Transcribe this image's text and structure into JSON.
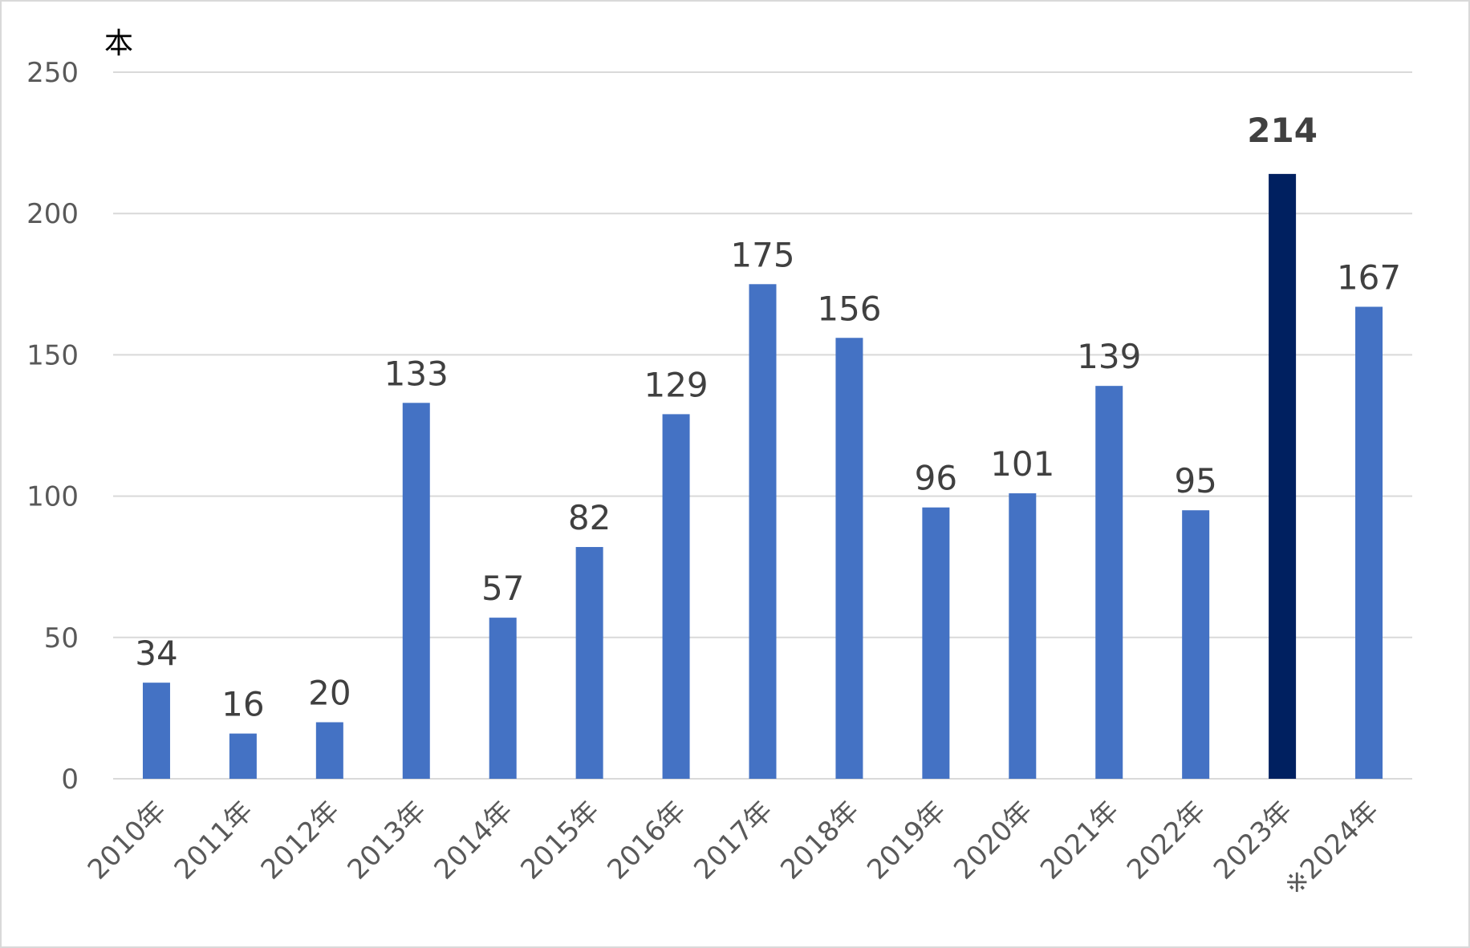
{
  "chart_data": {
    "type": "bar",
    "unit_label": "本",
    "categories": [
      "2010年",
      "2011年",
      "2012年",
      "2013年",
      "2014年",
      "2015年",
      "2016年",
      "2017年",
      "2018年",
      "2019年",
      "2020年",
      "2021年",
      "2022年",
      "2023年",
      "※2024年"
    ],
    "values": [
      34,
      16,
      20,
      133,
      57,
      82,
      129,
      175,
      156,
      96,
      101,
      139,
      95,
      214,
      167
    ],
    "highlight_index": 13,
    "ylim": [
      0,
      250
    ],
    "yticks": [
      0,
      50,
      100,
      150,
      200,
      250
    ],
    "grid": true,
    "colors": {
      "bar": "#4472C4",
      "highlight": "#002060",
      "grid": "#D9D9D9",
      "tick_label": "#595959",
      "data_label": "#404040"
    }
  }
}
